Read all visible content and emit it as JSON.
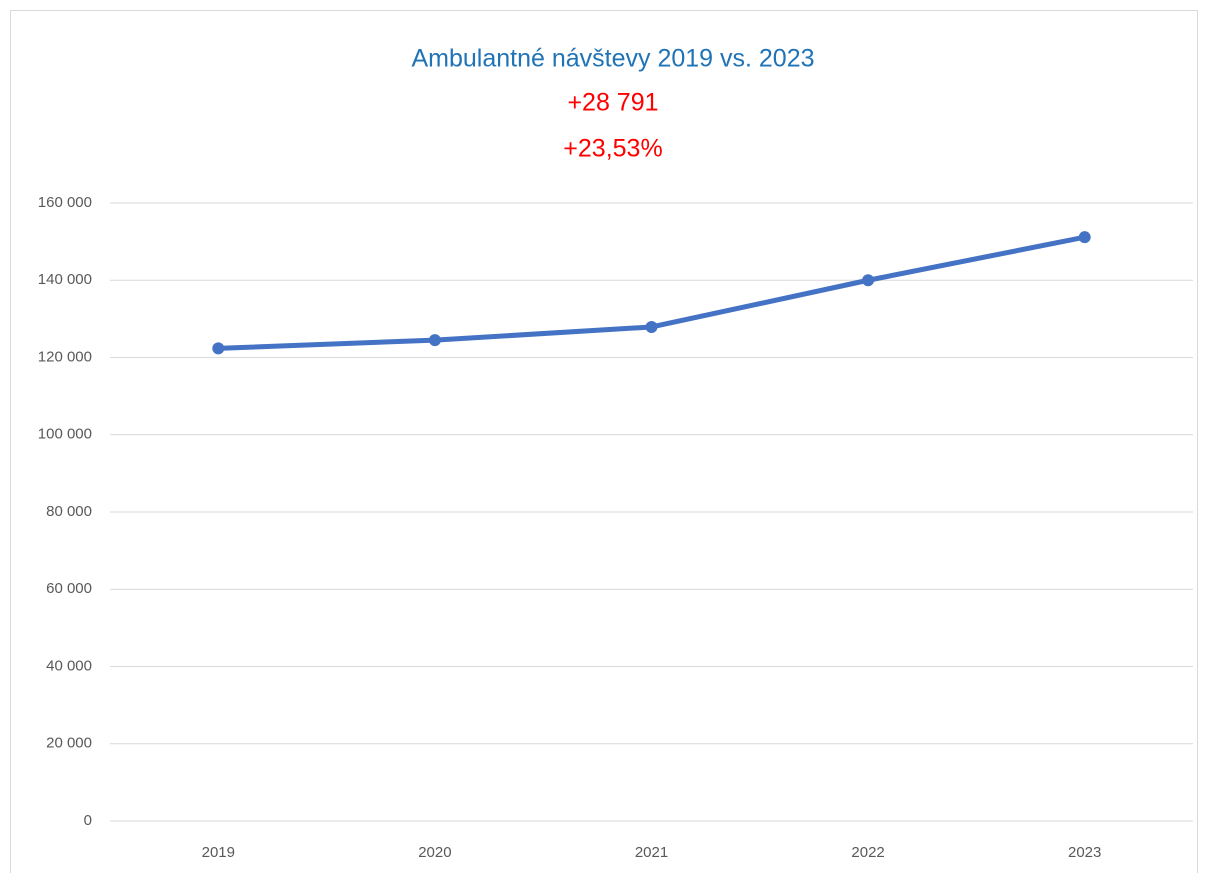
{
  "chart_data": {
    "type": "line",
    "title": "Ambulantné návštevy 2019 vs. 2023",
    "annotations": [
      "+28 791",
      "+23,53%"
    ],
    "categories": [
      "2019",
      "2020",
      "2021",
      "2022",
      "2023"
    ],
    "series": [
      {
        "name": "Ambulantné návštevy",
        "color": "#4472c4",
        "values": [
          122359,
          124500,
          127900,
          140000,
          151150
        ]
      }
    ],
    "ylim": [
      0,
      160000
    ],
    "yticks": [
      0,
      {
        "value": 20000,
        "label": "20 000"
      },
      {
        "value": 40000,
        "label": "40 000"
      },
      {
        "value": 60000,
        "label": "60 000"
      },
      {
        "value": 80000,
        "label": "80 000"
      },
      {
        "value": 100000,
        "label": "100 000"
      },
      {
        "value": 120000,
        "label": "120 000"
      },
      {
        "value": 140000,
        "label": "140 000"
      },
      {
        "value": 160000,
        "label": "160 000"
      }
    ],
    "grid": true,
    "legend": false
  }
}
